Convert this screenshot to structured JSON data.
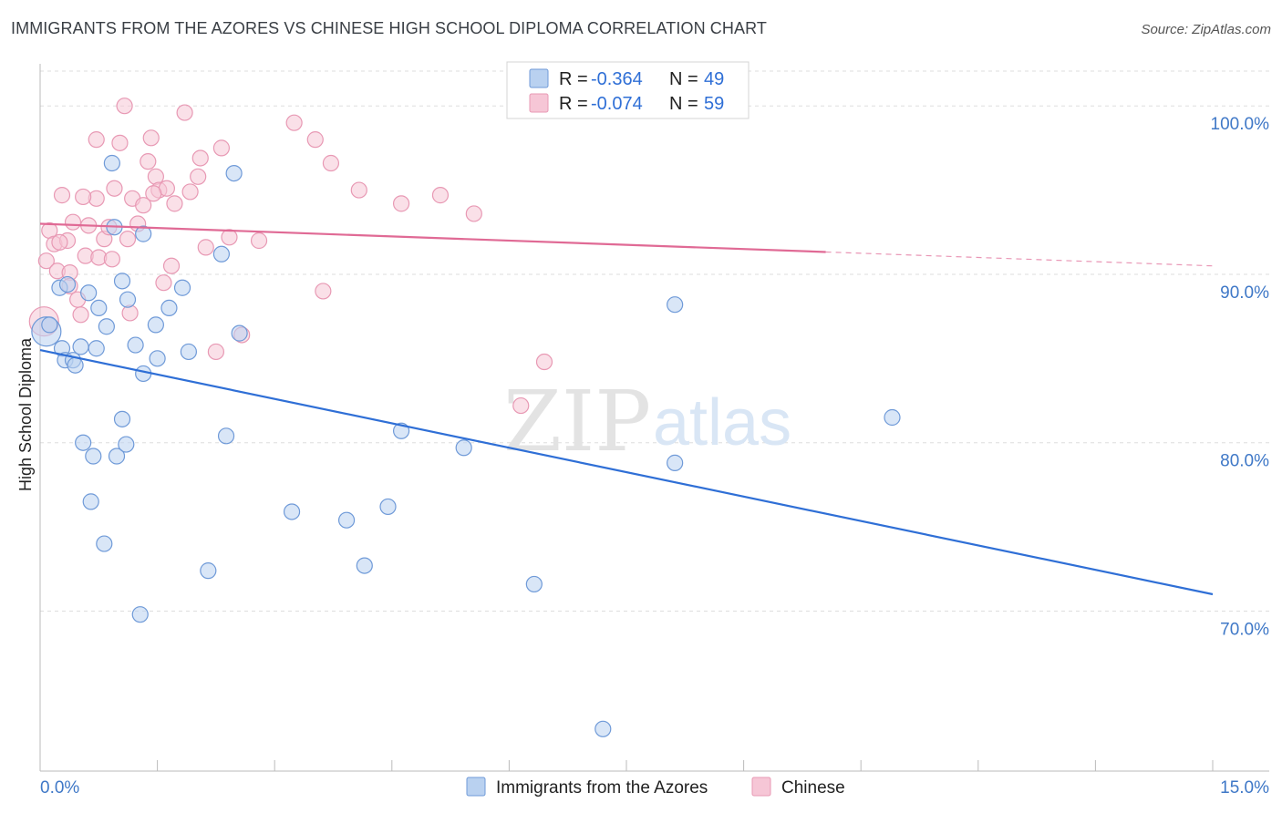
{
  "title": "IMMIGRANTS FROM THE AZORES VS CHINESE HIGH SCHOOL DIPLOMA CORRELATION CHART",
  "source": "Source: ZipAtlas.com",
  "watermark": {
    "zip": "ZIP",
    "atlas": "atlas"
  },
  "legend_top": [
    {
      "r_label": "R =",
      "r_value": "-0.364",
      "n_label": "N =",
      "n_value": "49"
    },
    {
      "r_label": "R =",
      "r_value": "-0.074",
      "n_label": "N =",
      "n_value": "59"
    }
  ],
  "colors": {
    "blue_fill": "#b9d1f0",
    "blue_stroke": "#6f9ad8",
    "blue_line": "#2f6fd6",
    "pink_fill": "#f6c6d6",
    "pink_stroke": "#e899b4",
    "pink_line": "#e06a95",
    "grid": "#dedede",
    "tick_text": "#3f78c7"
  },
  "chart_data": {
    "type": "scatter",
    "title": "IMMIGRANTS FROM THE AZORES VS CHINESE HIGH SCHOOL DIPLOMA CORRELATION CHART",
    "xlabel": "",
    "ylabel": "High School Diploma",
    "xlim": [
      0,
      15
    ],
    "ylim": [
      60.5,
      102.5
    ],
    "x_tick_labels": [
      "0.0%",
      "15.0%"
    ],
    "y_ticks": [
      70,
      80,
      90,
      100
    ],
    "y_tick_labels": [
      "70.0%",
      "80.0%",
      "90.0%",
      "100.0%"
    ],
    "grid": true,
    "legend_position": "bottom",
    "series": [
      {
        "name": "Immigrants from the Azores",
        "color": "blue",
        "R": -0.364,
        "N": 49,
        "trend": {
          "x": [
            0.0,
            15.0
          ],
          "y": [
            85.5,
            71.0
          ],
          "dashed_from": null
        },
        "points": [
          [
            0.08,
            86.6
          ],
          [
            0.25,
            89.2
          ],
          [
            0.28,
            85.6
          ],
          [
            0.35,
            89.4
          ],
          [
            0.32,
            84.9
          ],
          [
            0.42,
            84.9
          ],
          [
            0.45,
            84.6
          ],
          [
            0.52,
            85.7
          ],
          [
            0.62,
            88.9
          ],
          [
            0.55,
            80.0
          ],
          [
            0.72,
            85.6
          ],
          [
            0.75,
            88.0
          ],
          [
            0.92,
            96.6
          ],
          [
            0.95,
            92.8
          ],
          [
            1.05,
            89.6
          ],
          [
            1.12,
            88.5
          ],
          [
            1.22,
            85.8
          ],
          [
            1.32,
            84.1
          ],
          [
            1.48,
            87.0
          ],
          [
            1.5,
            85.0
          ],
          [
            1.32,
            92.4
          ],
          [
            1.65,
            88.0
          ],
          [
            1.82,
            89.2
          ],
          [
            1.9,
            85.4
          ],
          [
            2.48,
            96.0
          ],
          [
            2.32,
            91.2
          ],
          [
            2.55,
            86.5
          ],
          [
            0.68,
            79.2
          ],
          [
            0.98,
            79.2
          ],
          [
            1.05,
            81.4
          ],
          [
            1.1,
            79.9
          ],
          [
            0.65,
            76.5
          ],
          [
            0.82,
            74.0
          ],
          [
            1.28,
            69.8
          ],
          [
            2.15,
            72.4
          ],
          [
            2.38,
            80.4
          ],
          [
            3.22,
            75.9
          ],
          [
            3.92,
            75.4
          ],
          [
            4.15,
            72.7
          ],
          [
            4.45,
            76.2
          ],
          [
            4.62,
            80.7
          ],
          [
            5.42,
            79.7
          ],
          [
            8.12,
            88.2
          ],
          [
            8.12,
            78.8
          ],
          [
            10.9,
            81.5
          ],
          [
            6.32,
            71.6
          ],
          [
            7.2,
            63.0
          ],
          [
            0.85,
            86.9
          ],
          [
            0.12,
            87.0
          ]
        ]
      },
      {
        "name": "Chinese",
        "color": "pink",
        "R": -0.074,
        "N": 59,
        "trend": {
          "x": [
            0.0,
            15.0
          ],
          "y": [
            93.0,
            90.5
          ],
          "dashed_from": 10.05
        },
        "points": [
          [
            0.05,
            87.2
          ],
          [
            0.08,
            90.8
          ],
          [
            0.12,
            92.6
          ],
          [
            0.18,
            91.8
          ],
          [
            0.22,
            90.2
          ],
          [
            0.28,
            94.7
          ],
          [
            0.35,
            92.0
          ],
          [
            0.38,
            90.1
          ],
          [
            0.42,
            93.1
          ],
          [
            0.48,
            88.5
          ],
          [
            0.52,
            87.6
          ],
          [
            0.58,
            91.1
          ],
          [
            0.62,
            92.9
          ],
          [
            0.72,
            94.5
          ],
          [
            0.75,
            91.0
          ],
          [
            0.82,
            92.1
          ],
          [
            0.88,
            92.8
          ],
          [
            0.92,
            90.9
          ],
          [
            1.12,
            92.1
          ],
          [
            1.18,
            94.5
          ],
          [
            1.25,
            93.0
          ],
          [
            1.32,
            94.1
          ],
          [
            1.42,
            98.1
          ],
          [
            1.48,
            95.8
          ],
          [
            1.52,
            95.0
          ],
          [
            1.62,
            95.1
          ],
          [
            1.72,
            94.2
          ],
          [
            1.85,
            99.6
          ],
          [
            2.02,
            95.8
          ],
          [
            2.12,
            91.6
          ],
          [
            2.25,
            85.4
          ],
          [
            2.32,
            97.5
          ],
          [
            2.42,
            92.2
          ],
          [
            2.58,
            86.4
          ],
          [
            3.25,
            99.0
          ],
          [
            3.52,
            98.0
          ],
          [
            3.72,
            96.6
          ],
          [
            3.62,
            89.0
          ],
          [
            4.08,
            95.0
          ],
          [
            4.62,
            94.2
          ],
          [
            5.12,
            94.7
          ],
          [
            5.55,
            93.6
          ],
          [
            6.45,
            84.8
          ],
          [
            6.15,
            82.2
          ],
          [
            1.08,
            100.0
          ],
          [
            1.38,
            96.7
          ],
          [
            1.02,
            97.8
          ],
          [
            0.72,
            98.0
          ],
          [
            0.55,
            94.6
          ],
          [
            0.38,
            89.3
          ],
          [
            1.92,
            94.9
          ],
          [
            2.05,
            96.9
          ],
          [
            1.15,
            87.7
          ],
          [
            0.95,
            95.1
          ],
          [
            1.68,
            90.5
          ],
          [
            1.58,
            89.5
          ],
          [
            2.8,
            92.0
          ],
          [
            1.45,
            94.8
          ],
          [
            0.25,
            91.9
          ]
        ]
      }
    ]
  }
}
